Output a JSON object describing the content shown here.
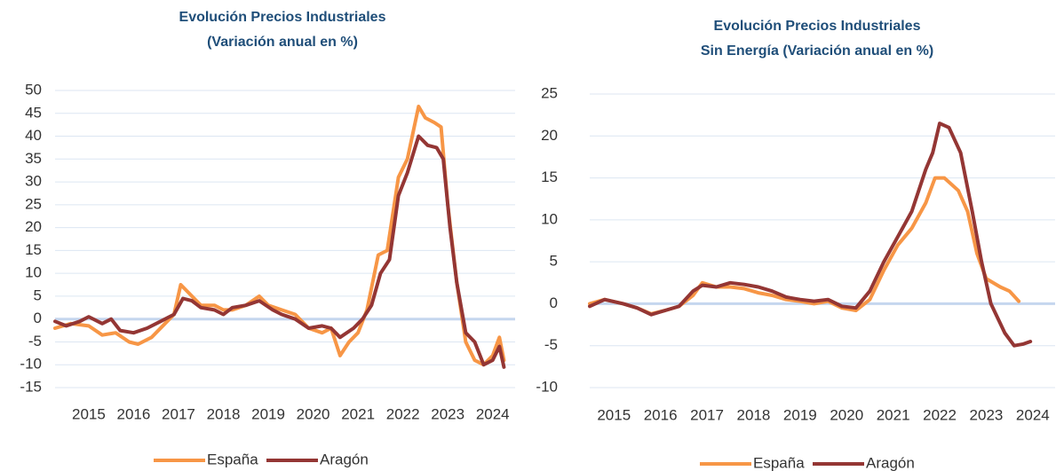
{
  "chart_data": [
    {
      "type": "line",
      "title": "Evolución Precios Industriales",
      "subtitle": "(Variación anual en %)",
      "ylim": [
        -15,
        50
      ],
      "yticks": [
        -15,
        -10,
        -5,
        0,
        5,
        10,
        15,
        20,
        25,
        30,
        35,
        40,
        45,
        50
      ],
      "xlim": [
        2014.25,
        2024.5
      ],
      "xticks": [
        2015,
        2016,
        2017,
        2018,
        2019,
        2020,
        2021,
        2022,
        2023,
        2024
      ],
      "grid": true,
      "legend": "bottom",
      "series": [
        {
          "name": "España",
          "color": "#f79646",
          "x": [
            2014.25,
            2014.6,
            2015.0,
            2015.3,
            2015.6,
            2015.9,
            2016.1,
            2016.4,
            2016.7,
            2016.9,
            2017.05,
            2017.3,
            2017.5,
            2017.8,
            2018.0,
            2018.2,
            2018.5,
            2018.8,
            2019.0,
            2019.3,
            2019.6,
            2019.9,
            2020.2,
            2020.4,
            2020.6,
            2020.8,
            2021.0,
            2021.2,
            2021.45,
            2021.65,
            2021.9,
            2022.1,
            2022.35,
            2022.5,
            2022.7,
            2022.85,
            2023.0,
            2023.2,
            2023.4,
            2023.6,
            2023.8,
            2024.0,
            2024.15,
            2024.25
          ],
          "values": [
            -2,
            -1,
            -1.5,
            -3.5,
            -3,
            -5,
            -5.5,
            -4,
            -1,
            1,
            7.5,
            5,
            3,
            3,
            2,
            2,
            3,
            5,
            3,
            2,
            1,
            -2,
            -3,
            -2,
            -8,
            -5,
            -3,
            2,
            14,
            15,
            31,
            35,
            46.5,
            44,
            43,
            42,
            25,
            8,
            -5,
            -9,
            -10,
            -8,
            -4,
            -9
          ]
        },
        {
          "name": "Aragón",
          "color": "#943634",
          "x": [
            2014.25,
            2014.5,
            2014.8,
            2015.0,
            2015.3,
            2015.5,
            2015.7,
            2016.0,
            2016.3,
            2016.6,
            2016.9,
            2017.1,
            2017.3,
            2017.5,
            2017.8,
            2018.0,
            2018.2,
            2018.5,
            2018.8,
            2019.1,
            2019.3,
            2019.6,
            2019.9,
            2020.2,
            2020.4,
            2020.6,
            2020.9,
            2021.1,
            2021.3,
            2021.5,
            2021.7,
            2021.9,
            2022.1,
            2022.35,
            2022.55,
            2022.75,
            2022.9,
            2023.05,
            2023.2,
            2023.4,
            2023.6,
            2023.8,
            2024.0,
            2024.15,
            2024.25
          ],
          "values": [
            -0.5,
            -1.5,
            -0.5,
            0.5,
            -1,
            0,
            -2.5,
            -3,
            -2,
            -0.5,
            1,
            4.5,
            4,
            2.5,
            2,
            1,
            2.5,
            3,
            4,
            2,
            1,
            0,
            -2,
            -1.5,
            -2,
            -4,
            -2,
            0,
            3,
            10,
            13,
            27,
            32,
            40,
            38,
            37.5,
            35,
            20,
            8,
            -3,
            -5,
            -10,
            -9,
            -6,
            -10.5
          ]
        }
      ]
    },
    {
      "type": "line",
      "title": "Evolución Precios Industriales",
      "subtitle": "Sin Energía (Variación anual en %)",
      "ylim": [
        -10,
        25
      ],
      "yticks": [
        -10,
        -5,
        0,
        5,
        10,
        15,
        20,
        25
      ],
      "xlim": [
        2014.48,
        2024.48
      ],
      "xticks": [
        2015,
        2016,
        2017,
        2018,
        2019,
        2020,
        2021,
        2022,
        2023,
        2024
      ],
      "grid": true,
      "legend": "bottom",
      "series": [
        {
          "name": "España",
          "color": "#f79646",
          "x": [
            2014.48,
            2014.8,
            2015.2,
            2015.5,
            2015.8,
            2016.1,
            2016.4,
            2016.7,
            2016.9,
            2017.2,
            2017.5,
            2017.8,
            2018.1,
            2018.4,
            2018.7,
            2019.0,
            2019.3,
            2019.6,
            2019.9,
            2020.2,
            2020.5,
            2020.8,
            2021.1,
            2021.4,
            2021.7,
            2021.9,
            2022.1,
            2022.4,
            2022.6,
            2022.8,
            2023.0,
            2023.3,
            2023.5,
            2023.7
          ],
          "values": [
            0,
            0.5,
            0,
            -0.5,
            -1.2,
            -0.8,
            -0.3,
            1,
            2.5,
            2,
            2,
            1.8,
            1.3,
            1,
            0.5,
            0.3,
            0,
            0.3,
            -0.5,
            -0.8,
            0.5,
            4,
            7,
            9,
            12,
            15,
            15,
            13.5,
            11,
            6,
            3,
            2,
            1.5,
            0.3
          ]
        },
        {
          "name": "Aragón",
          "color": "#943634",
          "x": [
            2014.48,
            2014.8,
            2015.2,
            2015.5,
            2015.8,
            2016.1,
            2016.4,
            2016.7,
            2016.9,
            2017.2,
            2017.5,
            2017.8,
            2018.1,
            2018.4,
            2018.7,
            2019.0,
            2019.3,
            2019.6,
            2019.9,
            2020.2,
            2020.5,
            2020.8,
            2021.1,
            2021.4,
            2021.7,
            2021.85,
            2022.0,
            2022.2,
            2022.45,
            2022.7,
            2022.9,
            2023.1,
            2023.4,
            2023.6,
            2023.8,
            2023.95
          ],
          "values": [
            -0.3,
            0.5,
            0,
            -0.5,
            -1.3,
            -0.8,
            -0.3,
            1.5,
            2.2,
            2,
            2.5,
            2.3,
            2,
            1.5,
            0.8,
            0.5,
            0.3,
            0.5,
            -0.3,
            -0.5,
            1.5,
            5,
            8,
            11,
            16,
            18,
            21.5,
            21,
            18,
            11,
            5,
            0,
            -3.5,
            -5,
            -4.8,
            -4.5
          ]
        }
      ]
    }
  ]
}
